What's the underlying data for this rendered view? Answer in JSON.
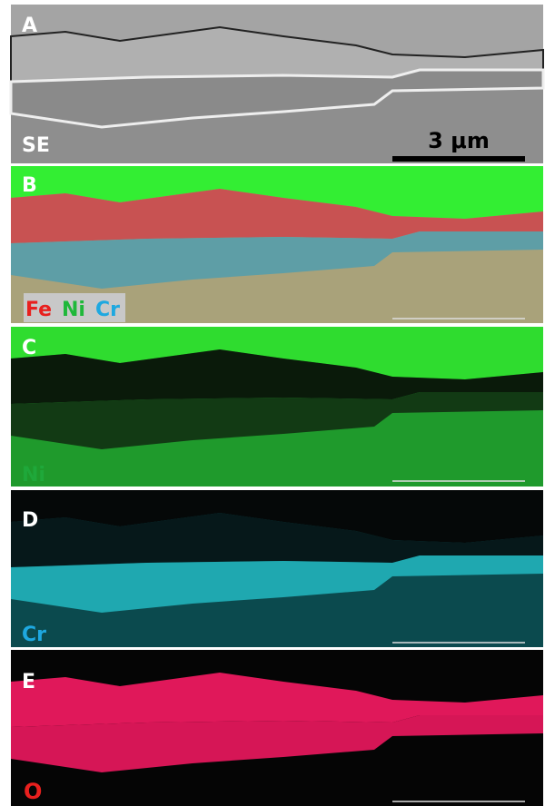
{
  "panels": [
    {
      "label": "A",
      "caption": "SE",
      "scale": "3 μm"
    },
    {
      "label": "B",
      "elements": [
        "Fe",
        "Ni",
        "Cr"
      ]
    },
    {
      "label": "C",
      "caption": "Ni"
    },
    {
      "label": "D",
      "caption": "Cr"
    },
    {
      "label": "E",
      "caption": "O"
    }
  ]
}
